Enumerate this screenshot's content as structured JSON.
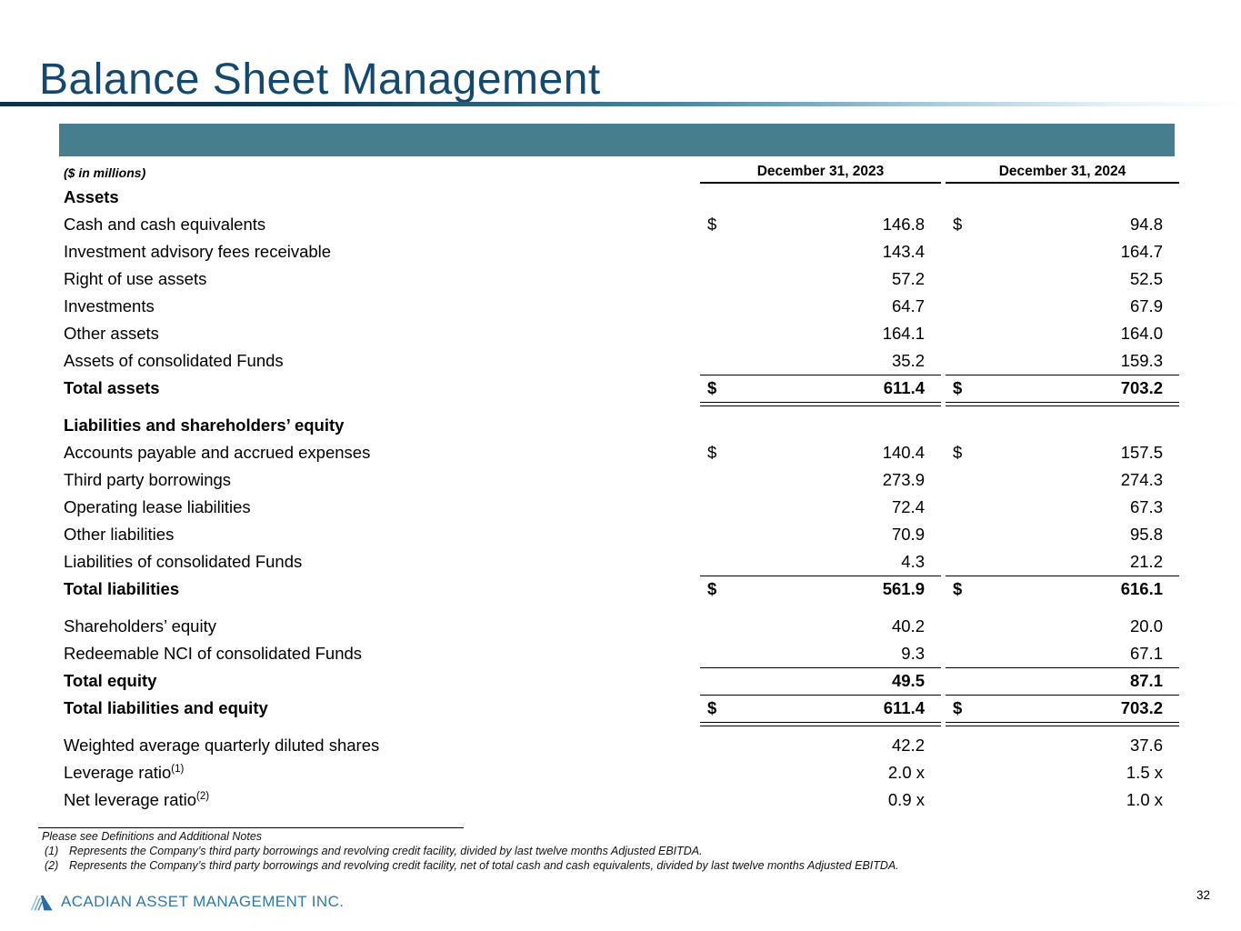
{
  "slide": {
    "title": "Balance Sheet Management",
    "page_number": "32"
  },
  "table": {
    "units_label": "($ in millions)",
    "col_headers": [
      "December 31, 2023",
      "December 31, 2024"
    ],
    "rows": [
      {
        "type": "section",
        "label": "Assets"
      },
      {
        "type": "item",
        "label": "Cash and cash equivalents",
        "dollar": true,
        "v1": "146.8",
        "v2": "94.8"
      },
      {
        "type": "item",
        "label": "Investment advisory fees receivable",
        "v1": "143.4",
        "v2": "164.7"
      },
      {
        "type": "item",
        "label": "Right of use assets",
        "v1": "57.2",
        "v2": "52.5"
      },
      {
        "type": "item",
        "label": "Investments",
        "v1": "64.7",
        "v2": "67.9"
      },
      {
        "type": "item",
        "label": "Other assets",
        "v1": "164.1",
        "v2": "164.0"
      },
      {
        "type": "item",
        "label": "Assets of consolidated Funds",
        "v1": "35.2",
        "v2": "159.3",
        "rule": "single"
      },
      {
        "type": "total",
        "label": "Total assets",
        "dollar": true,
        "v1": "611.4",
        "v2": "703.2",
        "rule": "double"
      },
      {
        "type": "section",
        "label": "Liabilities and shareholders’ equity",
        "gap": true
      },
      {
        "type": "item",
        "label": "Accounts payable and accrued expenses",
        "dollar": true,
        "v1": "140.4",
        "v2": "157.5"
      },
      {
        "type": "item",
        "label": "Third party borrowings",
        "v1": "273.9",
        "v2": "274.3"
      },
      {
        "type": "item",
        "label": "Operating lease liabilities",
        "v1": "72.4",
        "v2": "67.3"
      },
      {
        "type": "item",
        "label": "Other liabilities",
        "v1": "70.9",
        "v2": "95.8"
      },
      {
        "type": "item",
        "label": "Liabilities of consolidated Funds",
        "v1": "4.3",
        "v2": "21.2",
        "rule": "single"
      },
      {
        "type": "total",
        "label": "Total liabilities",
        "dollar": true,
        "v1": "561.9",
        "v2": "616.1"
      },
      {
        "type": "item",
        "label": "Shareholders’ equity",
        "v1": "40.2",
        "v2": "20.0",
        "gap": true
      },
      {
        "type": "item",
        "label": "Redeemable NCI of consolidated Funds",
        "v1": "9.3",
        "v2": "67.1",
        "rule": "single"
      },
      {
        "type": "total",
        "label": "Total equity",
        "v1": "49.5",
        "v2": "87.1",
        "rule": "single"
      },
      {
        "type": "total",
        "label": "Total liabilities and equity",
        "dollar": true,
        "v1": "611.4",
        "v2": "703.2",
        "rule": "double"
      },
      {
        "type": "item",
        "label": "Weighted average quarterly diluted shares",
        "v1": "42.2",
        "v2": "37.6",
        "gap": true
      },
      {
        "type": "item",
        "label": "Leverage ratio",
        "sup": "(1)",
        "v1": "2.0 x",
        "v2": "1.5 x"
      },
      {
        "type": "item",
        "label": "Net leverage ratio",
        "sup": "(2)",
        "v1": "0.9 x",
        "v2": "1.0 x"
      }
    ]
  },
  "notes": {
    "intro": "Please see Definitions and Additional Notes",
    "items": [
      {
        "num": "(1)",
        "text": "Represents the Company’s third party borrowings and revolving credit facility, divided by last twelve months Adjusted EBITDA."
      },
      {
        "num": "(2)",
        "text": "Represents the Company’s third party borrowings and revolving credit facility, net of total cash and cash equivalents, divided by last twelve months Adjusted EBITDA."
      }
    ]
  },
  "footer": {
    "brand": "ACADIAN ASSET MANAGEMENT INC."
  },
  "colors": {
    "accent_bar": "#477E8E",
    "title": "#14496D",
    "brand": "#2F79AB"
  }
}
